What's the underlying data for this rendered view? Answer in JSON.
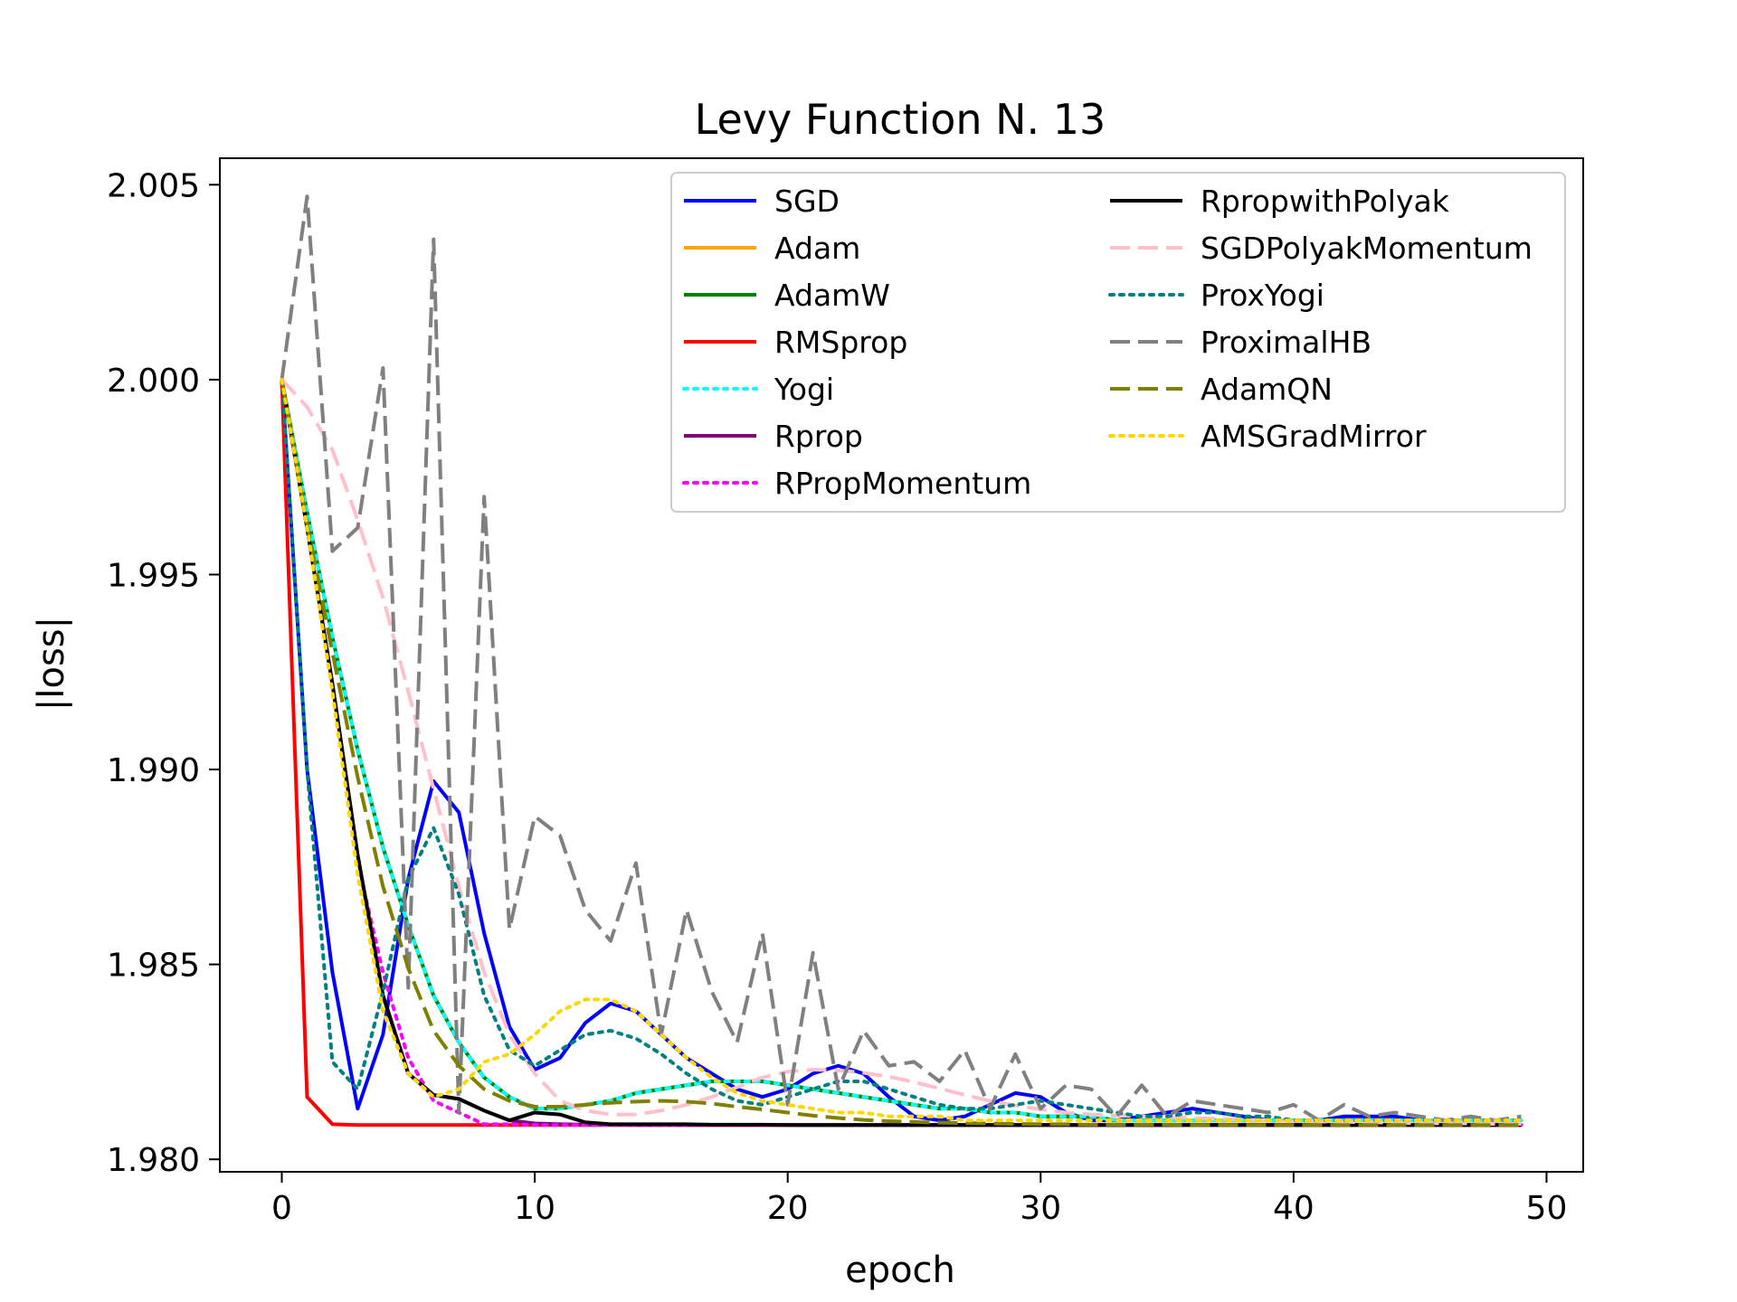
{
  "chart_data": {
    "type": "line",
    "title": "Levy Function N. 13",
    "xlabel": "epoch",
    "ylabel": "|loss|",
    "xlim": [
      -2.45,
      51.45
    ],
    "ylim": [
      1.97968,
      2.00568
    ],
    "xticks": [
      0,
      10,
      20,
      30,
      40,
      50
    ],
    "yticks": [
      1.98,
      1.985,
      1.99,
      1.995,
      2.0,
      2.005
    ],
    "xtick_labels": [
      "0",
      "10",
      "20",
      "30",
      "40",
      "50"
    ],
    "ytick_labels": [
      "1.980",
      "1.985",
      "1.990",
      "1.995",
      "2.000",
      "2.005"
    ],
    "grid": false,
    "legend_position": "top-right",
    "legend_columns": 2,
    "x": [
      0,
      1,
      2,
      3,
      4,
      5,
      6,
      7,
      8,
      9,
      10,
      11,
      12,
      13,
      14,
      15,
      16,
      17,
      18,
      19,
      20,
      21,
      22,
      23,
      24,
      25,
      26,
      27,
      28,
      29,
      30,
      31,
      32,
      33,
      34,
      35,
      36,
      37,
      38,
      39,
      40,
      41,
      42,
      43,
      44,
      45,
      46,
      47,
      48,
      49
    ],
    "series": [
      {
        "name": "SGD",
        "color": "#0000ff",
        "dash": "solid",
        "values": [
          2.0,
          1.99,
          1.9848,
          1.9813,
          1.9832,
          1.9872,
          1.9897,
          1.9889,
          1.9858,
          1.9834,
          1.9823,
          1.9826,
          1.9835,
          1.984,
          1.9838,
          1.9832,
          1.9826,
          1.9822,
          1.9818,
          1.9816,
          1.9818,
          1.9822,
          1.9824,
          1.9822,
          1.9816,
          1.9811,
          1.981,
          1.9811,
          1.9814,
          1.9817,
          1.9816,
          1.9812,
          1.981,
          1.981,
          1.9811,
          1.9812,
          1.9813,
          1.9812,
          1.9811,
          1.981,
          1.981,
          1.981,
          1.9811,
          1.9811,
          1.9811,
          1.981,
          1.981,
          1.981,
          1.981,
          1.981
        ]
      },
      {
        "name": "Adam",
        "color": "#ffa500",
        "dash": "solid",
        "values": [
          2.0,
          1.9966,
          1.9934,
          1.9905,
          1.988,
          1.986,
          1.9842,
          1.983,
          1.9821,
          1.9816,
          1.9813,
          1.9813,
          1.9814,
          1.9815,
          1.9817,
          1.9818,
          1.9819,
          1.982,
          1.982,
          1.982,
          1.9819,
          1.9818,
          1.9817,
          1.9816,
          1.9815,
          1.9814,
          1.9813,
          1.9813,
          1.9812,
          1.9812,
          1.9811,
          1.9811,
          1.9811,
          1.981,
          1.981,
          1.981,
          1.981,
          1.981,
          1.981,
          1.981,
          1.981,
          1.981,
          1.981,
          1.981,
          1.981,
          1.981,
          1.981,
          1.981,
          1.981,
          1.981
        ]
      },
      {
        "name": "AdamW",
        "color": "#008000",
        "dash": "solid",
        "values": [
          2.0,
          1.9966,
          1.9934,
          1.9905,
          1.988,
          1.986,
          1.9842,
          1.983,
          1.9821,
          1.9816,
          1.9813,
          1.9813,
          1.9814,
          1.9815,
          1.9817,
          1.9818,
          1.9819,
          1.982,
          1.982,
          1.982,
          1.9819,
          1.9818,
          1.9817,
          1.9816,
          1.9815,
          1.9814,
          1.9813,
          1.9813,
          1.9812,
          1.9812,
          1.9811,
          1.9811,
          1.9811,
          1.981,
          1.981,
          1.981,
          1.981,
          1.981,
          1.981,
          1.981,
          1.981,
          1.981,
          1.981,
          1.981,
          1.981,
          1.981,
          1.981,
          1.981,
          1.981,
          1.981
        ]
      },
      {
        "name": "RMSprop",
        "color": "#ff0000",
        "dash": "solid",
        "values": [
          2.0,
          1.9816,
          1.9809,
          1.98088,
          1.98088,
          1.98088,
          1.98088,
          1.98088,
          1.98088,
          1.98088,
          1.98088,
          1.98088,
          1.98088,
          1.98088,
          1.98088,
          1.98088,
          1.98088,
          1.98088,
          1.98088,
          1.98088,
          1.98088,
          1.98088,
          1.98088,
          1.98088,
          1.98088,
          1.98088,
          1.98088,
          1.98088,
          1.98088,
          1.98088,
          1.98088,
          1.98088,
          1.98088,
          1.98088,
          1.98088,
          1.98088,
          1.98088,
          1.98088,
          1.98088,
          1.98088,
          1.98088,
          1.98088,
          1.98088,
          1.98088,
          1.98088,
          1.98088,
          1.98088,
          1.98088,
          1.98088,
          1.98088
        ]
      },
      {
        "name": "Yogi",
        "color": "#00ffff",
        "dash": "dotted",
        "values": [
          2.0,
          1.9966,
          1.9934,
          1.9905,
          1.988,
          1.986,
          1.9842,
          1.983,
          1.9821,
          1.9816,
          1.9813,
          1.9813,
          1.9814,
          1.9815,
          1.9817,
          1.9818,
          1.9819,
          1.982,
          1.982,
          1.982,
          1.9819,
          1.9818,
          1.9817,
          1.9816,
          1.9815,
          1.9814,
          1.9813,
          1.9813,
          1.9812,
          1.9812,
          1.9811,
          1.9811,
          1.9811,
          1.981,
          1.981,
          1.981,
          1.981,
          1.981,
          1.981,
          1.981,
          1.981,
          1.981,
          1.981,
          1.981,
          1.981,
          1.981,
          1.981,
          1.981,
          1.981,
          1.981
        ]
      },
      {
        "name": "Rprop",
        "color": "#800080",
        "dash": "solid",
        "values": [
          2.0,
          1.9962,
          1.9922,
          1.9878,
          1.9842,
          1.9822,
          1.98165,
          1.98155,
          1.98125,
          1.981,
          1.98092,
          1.9809,
          1.98089,
          1.98089,
          1.98088,
          1.98088,
          1.98088,
          1.98088,
          1.98088,
          1.98088,
          1.98088,
          1.98088,
          1.98088,
          1.98088,
          1.98088,
          1.98088,
          1.98088,
          1.98088,
          1.98088,
          1.98088,
          1.98088,
          1.98088,
          1.98088,
          1.98088,
          1.98088,
          1.98088,
          1.98088,
          1.98088,
          1.98088,
          1.98088,
          1.98088,
          1.98088,
          1.98088,
          1.98088,
          1.98088,
          1.98088,
          1.98088,
          1.98088,
          1.98088,
          1.98088
        ]
      },
      {
        "name": "RPropMomentum",
        "color": "#ff00ff",
        "dash": "dotted",
        "values": [
          2.0,
          1.9962,
          1.9921,
          1.9876,
          1.9848,
          1.9826,
          1.9815,
          1.9812,
          1.9809,
          1.9809,
          1.98088,
          1.98088,
          1.98088,
          1.98088,
          1.98088,
          1.98088,
          1.98088,
          1.98088,
          1.98088,
          1.98088,
          1.98088,
          1.98088,
          1.98088,
          1.98088,
          1.98088,
          1.98088,
          1.98088,
          1.98088,
          1.98088,
          1.98088,
          1.98088,
          1.98088,
          1.98088,
          1.98088,
          1.98088,
          1.98088,
          1.98088,
          1.98088,
          1.98088,
          1.98088,
          1.98088,
          1.98088,
          1.98088,
          1.98088,
          1.98088,
          1.98088,
          1.98088,
          1.98088,
          1.98088,
          1.98088
        ]
      },
      {
        "name": "RpropwithPolyak",
        "color": "#000000",
        "dash": "solid",
        "values": [
          2.0,
          1.9962,
          1.9922,
          1.9878,
          1.9842,
          1.9822,
          1.98165,
          1.98155,
          1.98125,
          1.981,
          1.9812,
          1.98115,
          1.98095,
          1.9809,
          1.9809,
          1.9809,
          1.9809,
          1.98089,
          1.98089,
          1.98089,
          1.98088,
          1.98088,
          1.98088,
          1.98088,
          1.98088,
          1.98088,
          1.98088,
          1.98088,
          1.98088,
          1.98088,
          1.98088,
          1.98088,
          1.98088,
          1.98088,
          1.98088,
          1.98088,
          1.98088,
          1.98088,
          1.98088,
          1.98088,
          1.98088,
          1.98088,
          1.98088,
          1.98088,
          1.98088,
          1.98088,
          1.98088,
          1.98088,
          1.98088,
          1.98088
        ]
      },
      {
        "name": "SGDPolyakMomentum",
        "color": "#ffc0cb",
        "dash": "dashed",
        "values": [
          2.0,
          1.9993,
          1.9982,
          1.9964,
          1.9944,
          1.992,
          1.9895,
          1.987,
          1.9848,
          1.9832,
          1.9822,
          1.9815,
          1.98125,
          1.98115,
          1.98115,
          1.98125,
          1.9814,
          1.9816,
          1.98185,
          1.9821,
          1.98225,
          1.9823,
          1.98228,
          1.98222,
          1.98212,
          1.98198,
          1.98182,
          1.98165,
          1.9815,
          1.98138,
          1.98128,
          1.9812,
          1.98115,
          1.98112,
          1.9811,
          1.98108,
          1.98106,
          1.98104,
          1.98102,
          1.981,
          1.98098,
          1.98097,
          1.98096,
          1.98095,
          1.98094,
          1.98093,
          1.98092,
          1.98092,
          1.98091,
          1.98091
        ]
      },
      {
        "name": "ProxYogi",
        "color": "#008080",
        "dash": "dotted",
        "values": [
          2.0,
          1.99,
          1.9825,
          1.9818,
          1.9843,
          1.9872,
          1.9885,
          1.9868,
          1.9842,
          1.9828,
          1.9824,
          1.9828,
          1.9832,
          1.9833,
          1.9831,
          1.9827,
          1.9822,
          1.9818,
          1.9815,
          1.9814,
          1.9816,
          1.9818,
          1.982,
          1.982,
          1.9818,
          1.9816,
          1.9814,
          1.9813,
          1.9813,
          1.9814,
          1.9815,
          1.9814,
          1.9813,
          1.9812,
          1.9811,
          1.9811,
          1.9812,
          1.9812,
          1.9811,
          1.9811,
          1.981,
          1.981,
          1.981,
          1.981,
          1.981,
          1.981,
          1.981,
          1.981,
          1.981,
          1.981
        ]
      },
      {
        "name": "ProximalHB",
        "color": "#808080",
        "dash": "dashed",
        "values": [
          2.0,
          2.0047,
          1.9956,
          1.9962,
          2.0003,
          1.9844,
          2.0036,
          1.9812,
          1.997,
          1.9859,
          1.9888,
          1.9883,
          1.9864,
          1.9856,
          1.9876,
          1.9832,
          1.9864,
          1.9843,
          1.983,
          1.9858,
          1.9814,
          1.9853,
          1.9818,
          1.9833,
          1.9824,
          1.9825,
          1.982,
          1.9828,
          1.9813,
          1.9827,
          1.9813,
          1.9819,
          1.9818,
          1.9811,
          1.9819,
          1.9811,
          1.9815,
          1.9814,
          1.9813,
          1.9812,
          1.9814,
          1.981,
          1.9814,
          1.9811,
          1.9812,
          1.9811,
          1.981,
          1.9811,
          1.981,
          1.9811
        ]
      },
      {
        "name": "AdamQN",
        "color": "#808000",
        "dash": "dashed",
        "values": [
          2.0,
          1.9963,
          1.993,
          1.9898,
          1.987,
          1.9849,
          1.9833,
          1.9824,
          1.9818,
          1.9815,
          1.98135,
          1.98135,
          1.9814,
          1.98145,
          1.98148,
          1.9815,
          1.98148,
          1.98143,
          1.98135,
          1.98128,
          1.9812,
          1.98112,
          1.98106,
          1.98101,
          1.98098,
          1.98096,
          1.98094,
          1.98093,
          1.98092,
          1.98091,
          1.9809,
          1.9809,
          1.98089,
          1.98089,
          1.98089,
          1.98089,
          1.98088,
          1.98088,
          1.98088,
          1.98088,
          1.98088,
          1.98088,
          1.98088,
          1.98088,
          1.98088,
          1.98088,
          1.98088,
          1.98088,
          1.98088,
          1.98088
        ]
      },
      {
        "name": "AMSGradMirror",
        "color": "#ffd700",
        "dash": "dotted",
        "values": [
          2.0,
          1.9962,
          1.992,
          1.9873,
          1.9838,
          1.9822,
          1.9816,
          1.9818,
          1.9825,
          1.9827,
          1.9832,
          1.9838,
          1.9841,
          1.9841,
          1.9838,
          1.9832,
          1.9826,
          1.9821,
          1.9817,
          1.9815,
          1.9814,
          1.9813,
          1.9812,
          1.9812,
          1.9811,
          1.9811,
          1.9811,
          1.981,
          1.981,
          1.981,
          1.981,
          1.981,
          1.981,
          1.981,
          1.981,
          1.981,
          1.981,
          1.981,
          1.981,
          1.981,
          1.981,
          1.981,
          1.981,
          1.981,
          1.981,
          1.981,
          1.981,
          1.981,
          1.981,
          1.981
        ]
      }
    ]
  }
}
